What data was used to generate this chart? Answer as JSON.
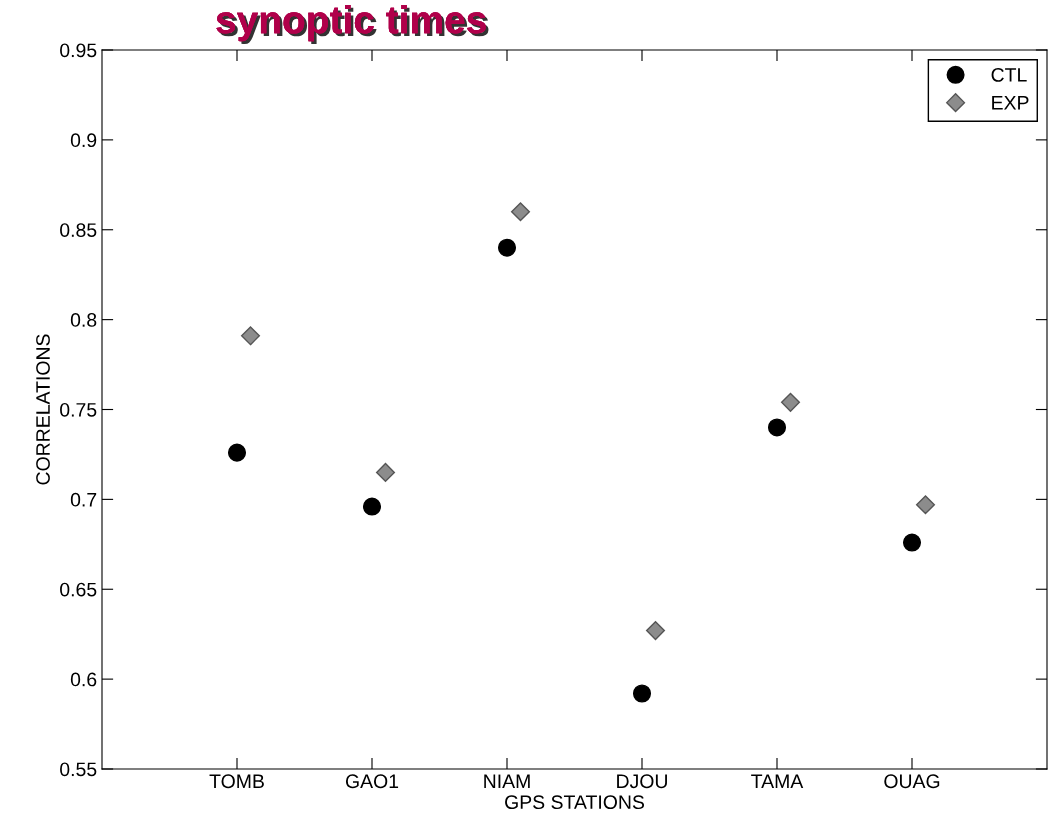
{
  "chart_data": {
    "type": "scatter",
    "title": "synoptic times",
    "xlabel": "GPS STATIONS",
    "ylabel": "CORRELATIONS",
    "categories": [
      "TOMB",
      "GAO1",
      "NIAM",
      "DJOU",
      "TAMA",
      "OUAG"
    ],
    "series": [
      {
        "name": "CTL",
        "color": "#000000",
        "marker": "circle",
        "values": [
          0.726,
          0.696,
          0.84,
          0.592,
          0.74,
          0.676
        ]
      },
      {
        "name": "EXP",
        "color": "#8c8c8c",
        "marker": "diamond",
        "values": [
          0.791,
          0.715,
          0.86,
          0.627,
          0.754,
          0.697
        ]
      }
    ],
    "ylim": [
      0.55,
      0.95
    ],
    "yticks": [
      0.55,
      0.6,
      0.65,
      0.7,
      0.75,
      0.8,
      0.85,
      0.9,
      0.95
    ],
    "grid": false,
    "legend": "top right"
  }
}
